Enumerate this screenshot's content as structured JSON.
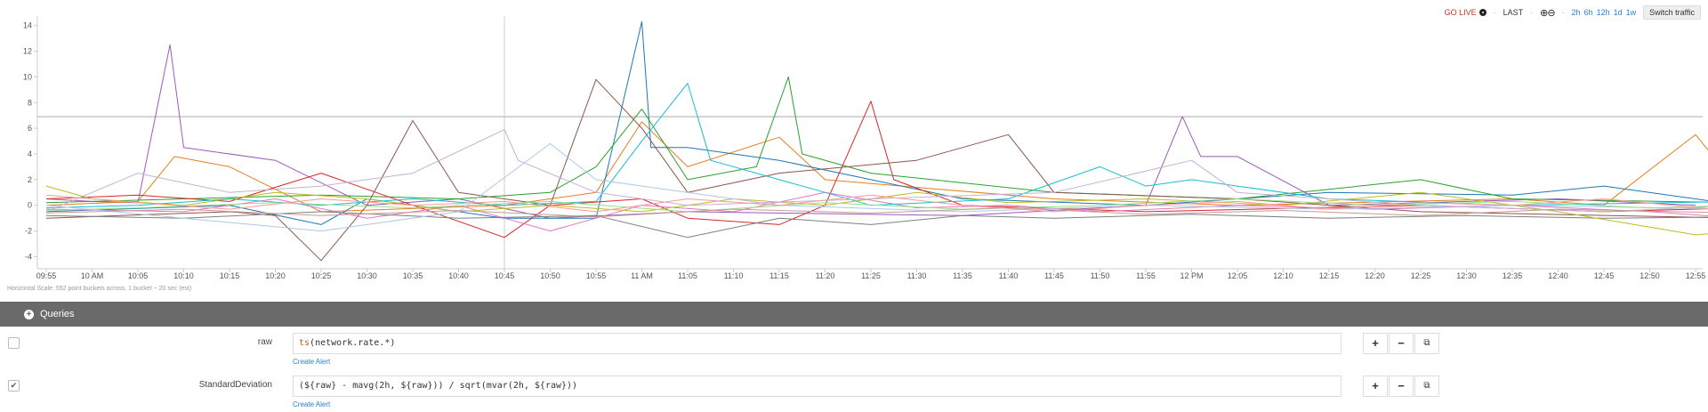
{
  "toolbar": {
    "go_live": "GO LIVE",
    "last": "LAST",
    "zoom_icons": "zoom-in-out-icons",
    "ranges": [
      "2h",
      "6h",
      "12h",
      "1d",
      "1w"
    ],
    "switch_label": "Switch traffic"
  },
  "chart_data": {
    "type": "line",
    "yticks": [
      "14",
      "12",
      "10",
      "8",
      "6",
      "4",
      "2",
      "0",
      "-2",
      "-4"
    ],
    "ylim": [
      -4.8,
      14.6
    ],
    "xticks": [
      "09:55",
      "10 AM",
      "10:05",
      "10:10",
      "10:15",
      "10:20",
      "10:25",
      "10:30",
      "10:35",
      "10:40",
      "10:45",
      "10:50",
      "10:55",
      "11 AM",
      "11:05",
      "11:10",
      "11:15",
      "11:20",
      "11:25",
      "11:30",
      "11:35",
      "11:40",
      "11:45",
      "11:50",
      "11:55",
      "12 PM",
      "12:05",
      "12:10",
      "12:15",
      "12:20",
      "12:25",
      "12:30",
      "12:35",
      "12:40",
      "12:45",
      "12:50",
      "12:55"
    ],
    "reference_line": 6.9,
    "crosshair_x": "10:45",
    "colors": [
      "#9b59b6",
      "#e67e22",
      "#1f77b4",
      "#2ca02c",
      "#d62728",
      "#8c564b",
      "#e377c2",
      "#7f7f7f",
      "#bcbd22",
      "#17becf",
      "#aec7e8",
      "#ff9896",
      "#98df8a",
      "#c5b0d5",
      "#c49c94"
    ],
    "series": [
      {
        "color": "#9b59b6",
        "points": [
          [
            0,
            0.5
          ],
          [
            1,
            0.3
          ],
          [
            2,
            0.2
          ],
          [
            2.7,
            12.5
          ],
          [
            3,
            4.5
          ],
          [
            5,
            3.5
          ],
          [
            7,
            0
          ],
          [
            9,
            0.5
          ],
          [
            11,
            -1
          ],
          [
            14,
            -0.5
          ],
          [
            20,
            -0.8
          ],
          [
            24,
            0
          ],
          [
            24.8,
            6.9
          ],
          [
            25.2,
            3.8
          ],
          [
            26,
            3.8
          ],
          [
            28,
            0
          ],
          [
            33,
            0.5
          ],
          [
            36,
            0
          ]
        ]
      },
      {
        "color": "#e67e22",
        "points": [
          [
            0,
            0
          ],
          [
            2,
            0.3
          ],
          [
            2.8,
            3.8
          ],
          [
            4,
            3
          ],
          [
            6,
            -0.5
          ],
          [
            10,
            0
          ],
          [
            12,
            1
          ],
          [
            13,
            6.5
          ],
          [
            14,
            3
          ],
          [
            16,
            5.3
          ],
          [
            17,
            2
          ],
          [
            22,
            0.5
          ],
          [
            26,
            0
          ],
          [
            32,
            0.5
          ],
          [
            34,
            0
          ],
          [
            36,
            5.5
          ],
          [
            36.5,
            3.3
          ],
          [
            37,
            3
          ]
        ]
      },
      {
        "color": "#1f77b4",
        "points": [
          [
            0,
            -0.5
          ],
          [
            4,
            0
          ],
          [
            6,
            -1.5
          ],
          [
            7,
            0.5
          ],
          [
            10,
            -1
          ],
          [
            12,
            -1
          ],
          [
            13,
            14.3
          ],
          [
            13.2,
            4.5
          ],
          [
            14,
            4.5
          ],
          [
            16,
            3.5
          ],
          [
            18,
            2
          ],
          [
            20,
            0.5
          ],
          [
            24,
            0
          ],
          [
            28,
            1
          ],
          [
            32,
            0.8
          ],
          [
            34,
            1.5
          ],
          [
            37,
            0
          ]
        ]
      },
      {
        "color": "#2ca02c",
        "points": [
          [
            0,
            0.2
          ],
          [
            3,
            0.5
          ],
          [
            6,
            0.8
          ],
          [
            9,
            0.5
          ],
          [
            11,
            1
          ],
          [
            12,
            3
          ],
          [
            13,
            7.5
          ],
          [
            14,
            2
          ],
          [
            15.5,
            3
          ],
          [
            16.2,
            10
          ],
          [
            16.5,
            4
          ],
          [
            18,
            2.5
          ],
          [
            22,
            1
          ],
          [
            26,
            0.5
          ],
          [
            30,
            2
          ],
          [
            32,
            0.5
          ],
          [
            37,
            0.2
          ]
        ]
      },
      {
        "color": "#d62728",
        "points": [
          [
            0,
            0.5
          ],
          [
            2,
            0.8
          ],
          [
            4,
            0.3
          ],
          [
            6,
            2.5
          ],
          [
            8,
            0
          ],
          [
            10,
            -2.5
          ],
          [
            11,
            0
          ],
          [
            13,
            0.5
          ],
          [
            14,
            -1
          ],
          [
            16,
            -1.5
          ],
          [
            17,
            0
          ],
          [
            18,
            8.1
          ],
          [
            18.5,
            2
          ],
          [
            20,
            0
          ],
          [
            24,
            -0.5
          ],
          [
            30,
            0
          ],
          [
            34,
            -0.5
          ],
          [
            37,
            -0.2
          ]
        ]
      },
      {
        "color": "#8c564b",
        "points": [
          [
            0,
            -1
          ],
          [
            4,
            -0.5
          ],
          [
            5,
            -0.8
          ],
          [
            6,
            -4.3
          ],
          [
            7,
            0
          ],
          [
            8,
            6.6
          ],
          [
            9,
            1
          ],
          [
            11,
            0
          ],
          [
            12,
            9.8
          ],
          [
            13,
            6
          ],
          [
            14,
            1
          ],
          [
            16,
            2.5
          ],
          [
            19,
            3.5
          ],
          [
            21,
            5.5
          ],
          [
            22,
            1
          ],
          [
            26,
            0.5
          ],
          [
            30,
            -0.5
          ],
          [
            37,
            -1
          ]
        ]
      },
      {
        "color": "#e377c2",
        "points": [
          [
            0,
            -0.3
          ],
          [
            3,
            -0.5
          ],
          [
            5,
            0.5
          ],
          [
            7,
            -1
          ],
          [
            9,
            0
          ],
          [
            11,
            -2
          ],
          [
            13,
            0
          ],
          [
            15,
            -0.5
          ],
          [
            17,
            1
          ],
          [
            19,
            -0.2
          ],
          [
            21,
            0
          ],
          [
            23,
            -0.5
          ],
          [
            26,
            0
          ],
          [
            29,
            -0.3
          ],
          [
            32,
            0
          ],
          [
            35,
            -0.5
          ],
          [
            37,
            -1
          ]
        ]
      },
      {
        "color": "#7f7f7f",
        "points": [
          [
            0,
            -0.8
          ],
          [
            3,
            -1
          ],
          [
            6,
            -0.5
          ],
          [
            9,
            -1
          ],
          [
            12,
            -0.8
          ],
          [
            14,
            -2.5
          ],
          [
            16,
            -1
          ],
          [
            18,
            -1.5
          ],
          [
            20,
            -0.8
          ],
          [
            22,
            -1
          ],
          [
            25,
            -0.7
          ],
          [
            28,
            -1
          ],
          [
            31,
            -0.8
          ],
          [
            34,
            -1
          ],
          [
            37,
            -0.9
          ]
        ]
      },
      {
        "color": "#bcbd22",
        "points": [
          [
            0,
            1.5
          ],
          [
            1,
            0.5
          ],
          [
            3,
            0
          ],
          [
            5,
            1
          ],
          [
            7,
            0.5
          ],
          [
            9,
            -0.5
          ],
          [
            11,
            0
          ],
          [
            13,
            -0.5
          ],
          [
            15,
            0.5
          ],
          [
            17,
            0
          ],
          [
            19,
            1
          ],
          [
            21,
            0.2
          ],
          [
            24,
            0.5
          ],
          [
            27,
            0
          ],
          [
            30,
            1
          ],
          [
            33,
            -0.5
          ],
          [
            36,
            -2.3
          ],
          [
            37,
            -2
          ]
        ]
      },
      {
        "color": "#17becf",
        "points": [
          [
            0,
            -0.2
          ],
          [
            2,
            0
          ],
          [
            4,
            0.5
          ],
          [
            6,
            0
          ],
          [
            8,
            0.5
          ],
          [
            10,
            0
          ],
          [
            12,
            0.3
          ],
          [
            13,
            5
          ],
          [
            14,
            9.5
          ],
          [
            14.5,
            3.5
          ],
          [
            16,
            2
          ],
          [
            18,
            0
          ],
          [
            21,
            0.5
          ],
          [
            23,
            3
          ],
          [
            24,
            1.5
          ],
          [
            25,
            2
          ],
          [
            28,
            0.5
          ],
          [
            32,
            0
          ],
          [
            37,
            0.3
          ]
        ]
      },
      {
        "color": "#aec7e8",
        "points": [
          [
            0,
            0
          ],
          [
            3,
            -1
          ],
          [
            6,
            -2
          ],
          [
            9,
            -0.5
          ],
          [
            11,
            4.8
          ],
          [
            12,
            2
          ],
          [
            14,
            1
          ],
          [
            16,
            0
          ],
          [
            20,
            -0.5
          ],
          [
            24,
            0
          ],
          [
            28,
            -0.3
          ],
          [
            32,
            0
          ],
          [
            37,
            -0.3
          ]
        ]
      },
      {
        "color": "#c5b0d5",
        "points": [
          [
            0,
            -0.5
          ],
          [
            2,
            2.5
          ],
          [
            4,
            1
          ],
          [
            6,
            1.5
          ],
          [
            8,
            2.5
          ],
          [
            10,
            5.9
          ],
          [
            10.3,
            3.5
          ],
          [
            12,
            1
          ],
          [
            14,
            0
          ],
          [
            18,
            0.5
          ],
          [
            22,
            1
          ],
          [
            25,
            3.5
          ],
          [
            26,
            1
          ],
          [
            30,
            0
          ],
          [
            34,
            -0.5
          ],
          [
            37,
            0
          ]
        ]
      },
      {
        "color": "#98df8a",
        "points": [
          [
            0,
            -0.4
          ],
          [
            2,
            -0.2
          ],
          [
            5,
            0.2
          ],
          [
            8,
            -0.2
          ],
          [
            11,
            0.3
          ],
          [
            14,
            -0.5
          ],
          [
            17,
            0.2
          ],
          [
            20,
            -0.3
          ],
          [
            23,
            0
          ],
          [
            26,
            0.5
          ],
          [
            29,
            0
          ],
          [
            32,
            0.3
          ],
          [
            35,
            -0.2
          ],
          [
            37,
            0
          ]
        ]
      },
      {
        "color": "#ff9896",
        "points": [
          [
            0,
            0.8
          ],
          [
            2,
            0.2
          ],
          [
            4,
            -0.3
          ],
          [
            6,
            0.5
          ],
          [
            8,
            0
          ],
          [
            10,
            0.3
          ],
          [
            12,
            -0.5
          ],
          [
            14,
            0.5
          ],
          [
            16,
            0
          ],
          [
            18,
            0.8
          ],
          [
            20,
            0
          ],
          [
            22,
            -0.5
          ],
          [
            24,
            0
          ],
          [
            26,
            0.3
          ],
          [
            28,
            -0.3
          ],
          [
            30,
            0.2
          ],
          [
            32,
            0
          ],
          [
            34,
            0.5
          ],
          [
            37,
            -0.5
          ]
        ]
      },
      {
        "color": "#c49c94",
        "points": [
          [
            0,
            -0.6
          ],
          [
            3,
            -0.3
          ],
          [
            6,
            -0.8
          ],
          [
            9,
            -0.4
          ],
          [
            12,
            -0.9
          ],
          [
            15,
            -0.3
          ],
          [
            18,
            -0.6
          ],
          [
            21,
            -0.2
          ],
          [
            24,
            -0.7
          ],
          [
            27,
            -0.4
          ],
          [
            30,
            -0.8
          ],
          [
            33,
            -0.3
          ],
          [
            37,
            -0.6
          ]
        ]
      }
    ]
  },
  "caption": "Horizontal Scale: 552 point buckets across, 1 bucket ~ 20 sec (est)",
  "queries_header": "Queries",
  "queries": [
    {
      "name": "raw",
      "checked": false,
      "check_mark": "",
      "expr_fn": "ts",
      "expr_rest": "(network.rate.*)",
      "alert": "Create Alert"
    },
    {
      "name": "StandardDeviation",
      "checked": true,
      "check_mark": "✔",
      "expr_rest": "(${raw} - mavg(2h, ${raw})) / sqrt(mvar(2h, ${raw}))",
      "alert": "Create Alert"
    }
  ],
  "buttons": {
    "plus": "+",
    "minus": "−",
    "copy": "⧉"
  }
}
